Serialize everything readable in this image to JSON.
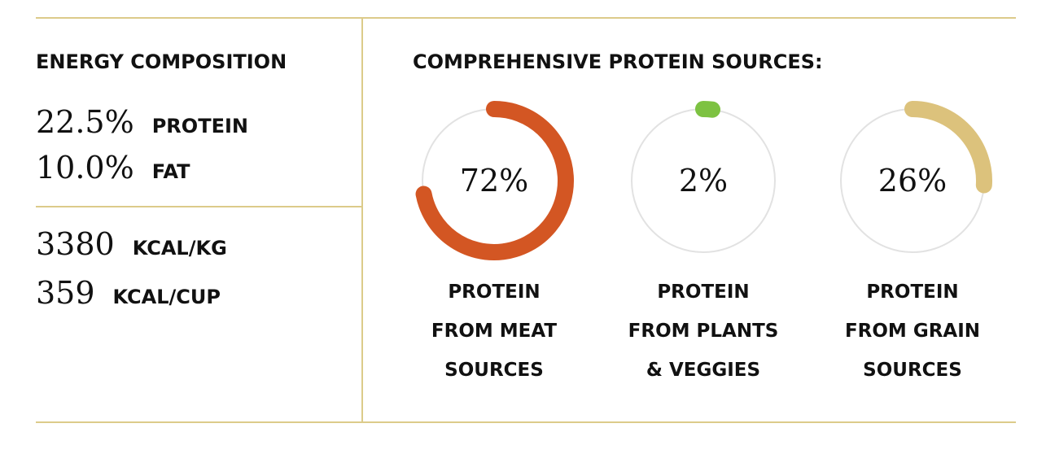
{
  "energy": {
    "heading": "ENERGY COMPOSITION",
    "macros": [
      {
        "value": "22.5%",
        "unit": "PROTEIN"
      },
      {
        "value": "10.0%",
        "unit": "FAT"
      }
    ],
    "calories": [
      {
        "value": "3380",
        "unit": "KCAL/KG"
      },
      {
        "value": "359",
        "unit": "KCAL/CUP"
      }
    ]
  },
  "protein": {
    "heading": "COMPREHENSIVE PROTEIN SOURCES:"
  },
  "colors": {
    "rule": "#dccb8a",
    "track": "#e2e2e2",
    "meat": "#d35623",
    "plants": "#7dc242",
    "grain": "#dcc27c"
  },
  "chart_data": {
    "type": "pie",
    "series": [
      {
        "label": "72%",
        "value": 72,
        "color": "#d35623",
        "caption": [
          "PROTEIN",
          "FROM MEAT",
          "SOURCES"
        ]
      },
      {
        "label": "2%",
        "value": 2,
        "color": "#7dc242",
        "caption": [
          "PROTEIN",
          "FROM PLANTS",
          "& VEGGIES"
        ]
      },
      {
        "label": "26%",
        "value": 26,
        "color": "#dcc27c",
        "caption": [
          "PROTEIN",
          "FROM GRAIN",
          "SOURCES"
        ]
      }
    ]
  }
}
